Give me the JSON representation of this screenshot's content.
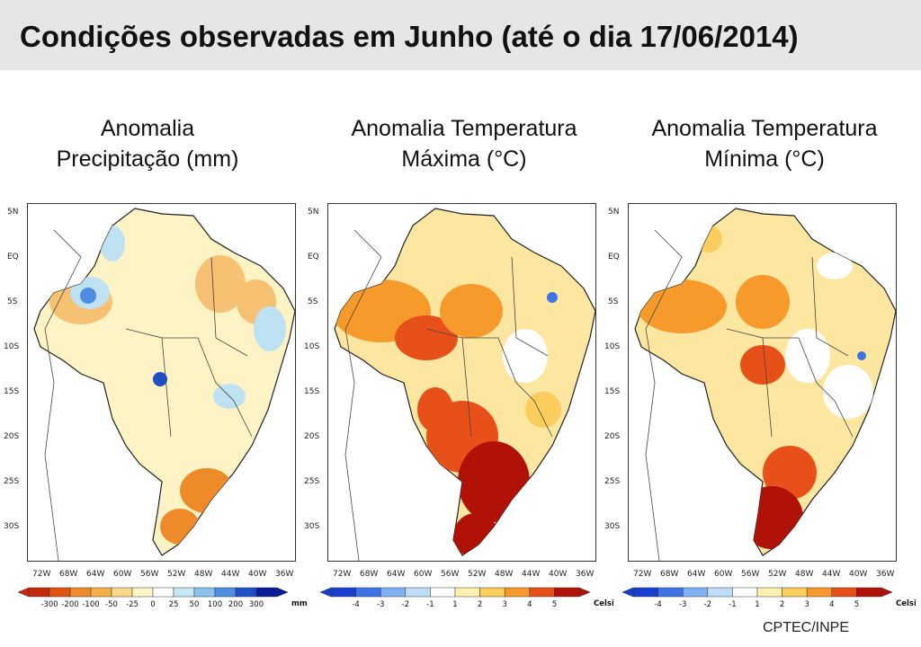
{
  "header": {
    "title": "Condições observadas em Junho (até o dia 17/06/2014)"
  },
  "latitude_labels": [
    "5N",
    "EQ",
    "5S",
    "10S",
    "15S",
    "20S",
    "25S",
    "30S"
  ],
  "longitude_labels": [
    "72W",
    "68W",
    "64W",
    "60W",
    "56W",
    "52W",
    "48W",
    "44W",
    "40W",
    "36W"
  ],
  "panels": [
    {
      "title_line1": "Anomalia",
      "title_line2": "Precipitação (mm)",
      "colorbar": {
        "ticks": [
          "-300",
          "-200",
          "-100",
          "-50",
          "-25",
          "0",
          "25",
          "50",
          "100",
          "200",
          "300"
        ],
        "unit": "mm",
        "colors": [
          "#c52a0d",
          "#e25416",
          "#ef8a2a",
          "#f6b048",
          "#fbd98a",
          "#fdf6c8",
          "#ffffff",
          "#c6e7f4",
          "#8ac2ec",
          "#4f8de0",
          "#1d4fc6",
          "#0b1a9a"
        ]
      }
    },
    {
      "title_line1": "Anomalia Temperatura",
      "title_line2": "Máxima (°C)",
      "colorbar": {
        "ticks": [
          "-4",
          "-3",
          "-2",
          "-1",
          "1",
          "2",
          "3",
          "4",
          "5"
        ],
        "unit": "Celsius",
        "colors": [
          "#1a3fd0",
          "#3f74e6",
          "#7fb0f0",
          "#bcdcf7",
          "#ffffff",
          "#fdf1b0",
          "#fbcd5c",
          "#f79a2c",
          "#e8501a",
          "#b01208"
        ]
      }
    },
    {
      "title_line1": "Anomalia Temperatura",
      "title_line2": "Mínima (°C)",
      "colorbar": {
        "ticks": [
          "-4",
          "-3",
          "-2",
          "-1",
          "1",
          "2",
          "3",
          "4",
          "5"
        ],
        "unit": "Celsius",
        "colors": [
          "#1a3fd0",
          "#3f74e6",
          "#7fb0f0",
          "#bcdcf7",
          "#ffffff",
          "#fdf1b0",
          "#fbcd5c",
          "#f79a2c",
          "#e8501a",
          "#b01208"
        ]
      }
    }
  ],
  "credit": "CPTEC/INPE"
}
